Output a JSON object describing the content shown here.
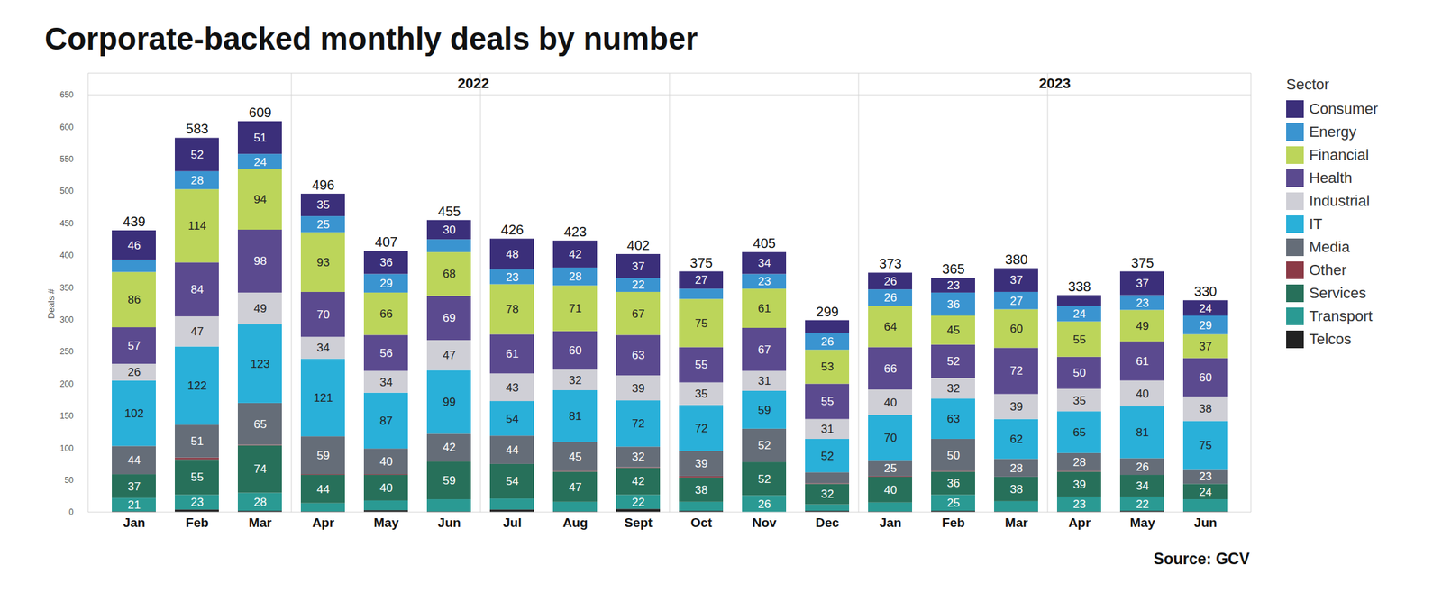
{
  "chart_data": {
    "type": "bar",
    "title": "Corporate-backed monthly deals by number",
    "source": "Source: GCV",
    "y_label": "Deals #",
    "legend_title": "Sector",
    "legend": "right",
    "stacked": true,
    "data_labels": true,
    "grid": false,
    "categories": [
      "Jan",
      "Feb",
      "Mar",
      "Apr",
      "May",
      "Jun",
      "Jul",
      "Aug",
      "Sept",
      "Oct",
      "Nov",
      "Dec",
      "Jan",
      "Feb",
      "Mar",
      "Apr",
      "May",
      "Jun"
    ],
    "x_groups": [
      {
        "label": "2022",
        "count": 12
      },
      {
        "label": "2023",
        "count": 6
      }
    ],
    "ylim": [
      0,
      650
    ],
    "yticks": [
      0,
      50,
      100,
      150,
      200,
      250,
      300,
      350,
      400,
      450,
      500,
      550,
      600,
      650
    ],
    "totals": [
      439,
      583,
      609,
      496,
      407,
      455,
      426,
      423,
      402,
      375,
      405,
      299,
      373,
      365,
      380,
      338,
      375,
      330
    ],
    "series": [
      {
        "name": "Consumer",
        "color": "#3b2f7a",
        "values": [
          46,
          52,
          51,
          35,
          36,
          30,
          48,
          42,
          37,
          27,
          34,
          20,
          26,
          23,
          37,
          17,
          37,
          24
        ]
      },
      {
        "name": "Energy",
        "color": "#3a94d0",
        "values": [
          19,
          28,
          24,
          25,
          29,
          20,
          23,
          28,
          22,
          16,
          23,
          26,
          26,
          36,
          27,
          24,
          23,
          29
        ]
      },
      {
        "name": "Financial",
        "color": "#bcd55a",
        "values": [
          86,
          114,
          94,
          93,
          66,
          68,
          78,
          71,
          67,
          75,
          61,
          53,
          64,
          45,
          60,
          55,
          49,
          37
        ]
      },
      {
        "name": "Health",
        "color": "#5b4a8f",
        "values": [
          57,
          84,
          98,
          70,
          56,
          69,
          61,
          60,
          63,
          55,
          67,
          55,
          66,
          52,
          72,
          50,
          61,
          60
        ]
      },
      {
        "name": "Industrial",
        "color": "#cfcfd6",
        "values": [
          26,
          47,
          49,
          34,
          34,
          47,
          43,
          32,
          39,
          35,
          31,
          31,
          40,
          32,
          39,
          35,
          40,
          38
        ]
      },
      {
        "name": "IT",
        "color": "#29b0d9",
        "values": [
          102,
          122,
          123,
          121,
          87,
          99,
          54,
          81,
          72,
          72,
          59,
          52,
          70,
          63,
          62,
          65,
          81,
          75
        ]
      },
      {
        "name": "Media",
        "color": "#656d78",
        "values": [
          44,
          51,
          65,
          59,
          40,
          42,
          44,
          45,
          32,
          39,
          52,
          17,
          25,
          50,
          28,
          28,
          26,
          23
        ]
      },
      {
        "name": "Other",
        "color": "#8b3a46",
        "values": [
          0,
          3,
          1,
          1,
          1,
          1,
          0,
          1,
          1,
          2,
          0,
          1,
          1,
          1,
          0,
          1,
          0,
          0
        ]
      },
      {
        "name": "Services",
        "color": "#27705a",
        "values": [
          37,
          55,
          74,
          44,
          40,
          59,
          54,
          47,
          42,
          38,
          52,
          32,
          40,
          36,
          38,
          39,
          34,
          24
        ]
      },
      {
        "name": "Transport",
        "color": "#2a9a93",
        "values": [
          21,
          23,
          28,
          13,
          15,
          19,
          17,
          15,
          22,
          14,
          26,
          10,
          14,
          25,
          16,
          23,
          22,
          19
        ]
      },
      {
        "name": "Telcos",
        "color": "#222222",
        "values": [
          1,
          4,
          2,
          1,
          3,
          1,
          4,
          1,
          5,
          2,
          0,
          2,
          1,
          2,
          1,
          1,
          2,
          1
        ]
      }
    ]
  }
}
